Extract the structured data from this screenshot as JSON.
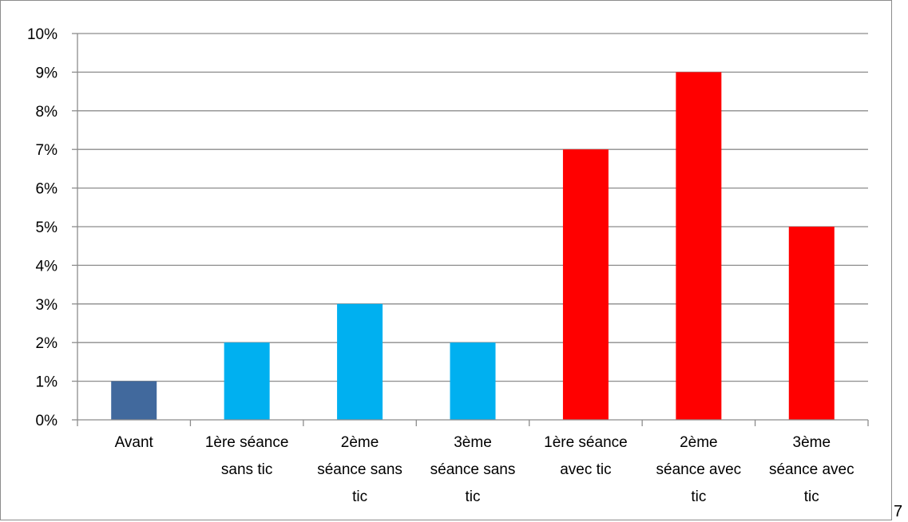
{
  "chart_data": {
    "type": "bar",
    "categories": [
      [
        "Avant"
      ],
      [
        "1ère séance",
        "sans tic"
      ],
      [
        "2ème",
        "séance sans",
        "tic"
      ],
      [
        "3ème",
        "séance sans",
        "tic"
      ],
      [
        "1ère séance",
        "avec tic"
      ],
      [
        "2ème",
        "séance avec",
        "tic"
      ],
      [
        "3ème",
        "séance avec",
        "tic"
      ]
    ],
    "values": [
      1,
      2,
      3,
      2,
      7,
      9,
      5
    ],
    "value_unit": "%",
    "bar_colors": [
      "#41699d",
      "#00b0f0",
      "#00b0f0",
      "#00b0f0",
      "#ff0000",
      "#ff0000",
      "#ff0000"
    ],
    "ylim": [
      0,
      10
    ],
    "y_ticks": [
      "0%",
      "1%",
      "2%",
      "3%",
      "4%",
      "5%",
      "6%",
      "7%",
      "8%",
      "9%",
      "10%"
    ],
    "grid": true,
    "legend": "none",
    "title": "",
    "xlabel": "",
    "ylabel": ""
  },
  "trailing_text": "7"
}
